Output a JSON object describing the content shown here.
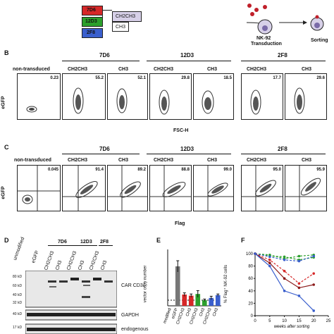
{
  "panel_a": {
    "clones": [
      "7D6",
      "12D3",
      "2F8"
    ],
    "clone_colors": [
      "#d62728",
      "#2ca02c",
      "#3a5fcd"
    ],
    "constructs": [
      "CH2CH3",
      "CH3"
    ],
    "transduction": "NK-92\nTransduction",
    "transduction_line1": "NK-92",
    "transduction_line2": "Transduction",
    "sorting": "Sorting"
  },
  "panel_b": {
    "letter": "B",
    "y_label": "eGFP",
    "x_label": "FSC-H",
    "control_label": "non-transduced",
    "groups": [
      "7D6",
      "12D3",
      "2F8"
    ],
    "sub_labels": [
      "CH2CH3",
      "CH3",
      "CH2CH3",
      "CH3",
      "CH2CH3",
      "CH3"
    ],
    "values": [
      "0.23",
      "55.2",
      "52.1",
      "29.8",
      "18.5",
      "17.7",
      "29.6"
    ]
  },
  "panel_c": {
    "letter": "C",
    "y_label": "eGFP",
    "x_label": "Flag",
    "control_label": "non-transduced",
    "groups": [
      "7D6",
      "12D3",
      "2F8"
    ],
    "sub_labels": [
      "CH2CH3",
      "CH3",
      "CH2CH3",
      "CH3",
      "CH2CH3",
      "CH3"
    ],
    "values": [
      "0.045",
      "91.4",
      "89.2",
      "88.8",
      "99.0",
      "95.0",
      "95.9"
    ]
  },
  "panel_d": {
    "letter": "D",
    "lane_labels": [
      "unmodified",
      "eGFP",
      "CH2CH3",
      "CH3",
      "CH2CH3",
      "CH3",
      "CH2CH3",
      "CH3"
    ],
    "groups": [
      "7D6",
      "12D3",
      "2F8"
    ],
    "mw_labels": [
      "80 kD",
      "60 kD",
      "40 kD",
      "32 kD",
      "40 kD",
      "17 kD"
    ],
    "blot_labels": [
      "CAR CD3ζ",
      "GAPDH",
      "endogenous"
    ]
  },
  "panel_e": {
    "letter": "E",
    "y_label": "vector copy number",
    "x_labels": [
      "modified",
      "eGFP",
      "CH2CH3",
      "CH3",
      "CH2CH3",
      "CH3",
      "CH2CH3",
      "CH3"
    ]
  },
  "panel_f": {
    "letter": "F",
    "y_label": "% Flag⁺ NK-92 cells",
    "x_label": "weeks after sorting",
    "y_ticks": [
      "100",
      "80",
      "60",
      "40",
      "20",
      "0"
    ],
    "x_ticks": [
      "0",
      "5",
      "10",
      "15",
      "20",
      "25"
    ]
  },
  "chart_data": [
    {
      "type": "bar",
      "title": "",
      "ylabel": "vector copy number",
      "categories": [
        "modified",
        "eGFP",
        "CH2CH3",
        "CH3",
        "CH2CH3",
        "CH3",
        "CH2CH3",
        "CH3"
      ],
      "values": [
        0,
        7.0,
        2.0,
        1.8,
        2.1,
        1.0,
        1.4,
        1.9
      ],
      "errors": [
        0,
        1.0,
        0.3,
        0.3,
        0.6,
        0.2,
        0.3,
        0.2
      ],
      "colors": [
        "#555555",
        "#777777",
        "#d62728",
        "#d62728",
        "#2ca02c",
        "#2ca02c",
        "#3a5fcd",
        "#3a5fcd"
      ],
      "ylim": [
        0,
        10
      ],
      "reference_line": 1
    },
    {
      "type": "line",
      "title": "",
      "xlabel": "weeks after sorting",
      "ylabel": "% Flag⁺ NK-92 cells",
      "xlim": [
        0,
        25
      ],
      "ylim": [
        0,
        100
      ],
      "series": [
        {
          "color": "#2ca02c",
          "dashed": true,
          "x": [
            0,
            5,
            10,
            15,
            20
          ],
          "y": [
            100,
            98,
            92,
            96,
            98
          ]
        },
        {
          "color": "#2ca02c",
          "dashed": true,
          "x": [
            0,
            5,
            10,
            15,
            20
          ],
          "y": [
            100,
            96,
            95,
            90,
            94
          ]
        },
        {
          "color": "#3a5fcd",
          "dashed": true,
          "x": [
            0,
            5,
            10,
            15,
            20
          ],
          "y": [
            100,
            95,
            90,
            88,
            96
          ]
        },
        {
          "color": "#d62728",
          "dashed": true,
          "x": [
            0,
            5,
            10,
            15,
            20
          ],
          "y": [
            100,
            90,
            72,
            52,
            68
          ]
        },
        {
          "color": "#8b1a1a",
          "dashed": false,
          "x": [
            0,
            5,
            10,
            15,
            20
          ],
          "y": [
            100,
            85,
            60,
            45,
            50
          ]
        },
        {
          "color": "#3a5fcd",
          "dashed": false,
          "x": [
            0,
            5,
            10,
            15,
            20
          ],
          "y": [
            100,
            80,
            40,
            32,
            8
          ]
        }
      ]
    }
  ]
}
